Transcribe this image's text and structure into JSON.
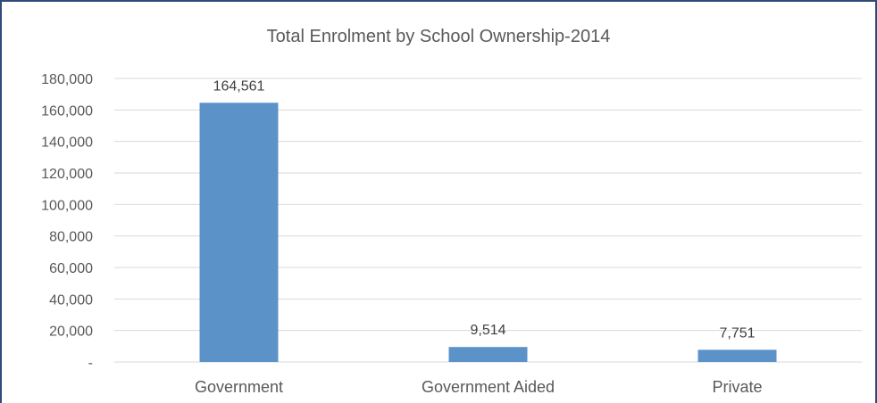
{
  "chart_data": {
    "type": "bar",
    "title": "Total Enrolment by School Ownership-2014",
    "categories": [
      "Government",
      "Government Aided",
      "Private"
    ],
    "values": [
      164561,
      9514,
      7751
    ],
    "data_labels": [
      "164,561",
      "9,514",
      "7,751"
    ],
    "xlabel": "",
    "ylabel": "",
    "ylim": [
      0,
      180000
    ],
    "y_ticks": [
      0,
      20000,
      40000,
      60000,
      80000,
      100000,
      120000,
      140000,
      160000,
      180000
    ],
    "y_tick_labels": [
      "-",
      "20,000",
      "40,000",
      "60,000",
      "80,000",
      "100,000",
      "120,000",
      "140,000",
      "160,000",
      "180,000"
    ],
    "grid": true,
    "legend": "none",
    "bar_color": "#5b93c9",
    "grid_color": "#d9d9d9"
  }
}
